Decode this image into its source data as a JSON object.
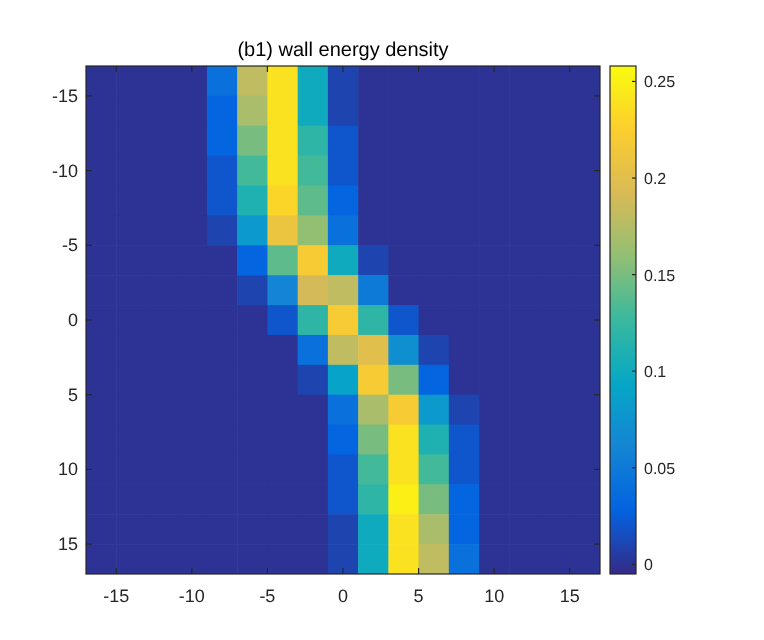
{
  "chart_data": {
    "type": "heatmap",
    "title": "(b1) wall energy density",
    "x": [
      -16,
      -14,
      -12,
      -10,
      -8,
      -6,
      -4,
      -2,
      0,
      2,
      4,
      6,
      8,
      10,
      12,
      14,
      16
    ],
    "y": [
      -16,
      -14,
      -12,
      -10,
      -8,
      -6,
      -4,
      -2,
      0,
      2,
      4,
      6,
      8,
      10,
      12,
      14,
      16
    ],
    "xlim": [
      -17,
      17
    ],
    "ylim": [
      17,
      -17
    ],
    "xticks": [
      -15,
      -10,
      -5,
      0,
      5,
      10,
      15
    ],
    "yticks": [
      -15,
      -10,
      -5,
      0,
      5,
      10,
      15
    ],
    "clim": [
      -0.005,
      0.258
    ],
    "cticks": [
      0,
      0.05,
      0.1,
      0.15,
      0.2,
      0.25
    ],
    "cells": [
      [
        0,
        0,
        0,
        0,
        0.04,
        0.18,
        0.24,
        0.1,
        0.01,
        0,
        0,
        0,
        0,
        0,
        0,
        0,
        0
      ],
      [
        0,
        0,
        0,
        0,
        0.03,
        0.17,
        0.24,
        0.1,
        0.01,
        0,
        0,
        0,
        0,
        0,
        0,
        0,
        0
      ],
      [
        0,
        0,
        0,
        0,
        0.03,
        0.15,
        0.24,
        0.12,
        0.02,
        0,
        0,
        0,
        0,
        0,
        0,
        0,
        0
      ],
      [
        0,
        0,
        0,
        0,
        0.02,
        0.13,
        0.24,
        0.13,
        0.02,
        0,
        0,
        0,
        0,
        0,
        0,
        0,
        0
      ],
      [
        0,
        0,
        0,
        0,
        0.02,
        0.11,
        0.23,
        0.14,
        0.03,
        0,
        0,
        0,
        0,
        0,
        0,
        0,
        0
      ],
      [
        0,
        0,
        0,
        0,
        0.01,
        0.08,
        0.21,
        0.16,
        0.04,
        0,
        0,
        0,
        0,
        0,
        0,
        0,
        0
      ],
      [
        0,
        0,
        0,
        0,
        0,
        0.03,
        0.14,
        0.22,
        0.1,
        0.01,
        0,
        0,
        0,
        0,
        0,
        0,
        0
      ],
      [
        0,
        0,
        0,
        0,
        0,
        0.01,
        0.06,
        0.19,
        0.18,
        0.05,
        0,
        0,
        0,
        0,
        0,
        0,
        0
      ],
      [
        0,
        0,
        0,
        0,
        0,
        0,
        0.02,
        0.12,
        0.22,
        0.12,
        0.02,
        0,
        0,
        0,
        0,
        0,
        0
      ],
      [
        0,
        0,
        0,
        0,
        0,
        0,
        0,
        0.04,
        0.18,
        0.2,
        0.07,
        0.01,
        0,
        0,
        0,
        0,
        0
      ],
      [
        0,
        0,
        0,
        0,
        0,
        0,
        0,
        0.01,
        0.09,
        0.22,
        0.15,
        0.03,
        0,
        0,
        0,
        0,
        0
      ],
      [
        0,
        0,
        0,
        0,
        0,
        0,
        0,
        0,
        0.04,
        0.17,
        0.22,
        0.08,
        0.01,
        0,
        0,
        0,
        0
      ],
      [
        0,
        0,
        0,
        0,
        0,
        0,
        0,
        0,
        0.03,
        0.15,
        0.24,
        0.11,
        0.02,
        0,
        0,
        0,
        0
      ],
      [
        0,
        0,
        0,
        0,
        0,
        0,
        0,
        0,
        0.02,
        0.13,
        0.24,
        0.13,
        0.02,
        0,
        0,
        0,
        0
      ],
      [
        0,
        0,
        0,
        0,
        0,
        0,
        0,
        0,
        0.02,
        0.12,
        0.25,
        0.15,
        0.03,
        0,
        0,
        0,
        0
      ],
      [
        0,
        0,
        0,
        0,
        0,
        0,
        0,
        0,
        0.01,
        0.1,
        0.24,
        0.17,
        0.03,
        0,
        0,
        0,
        0
      ],
      [
        0,
        0,
        0,
        0,
        0,
        0,
        0,
        0,
        0.01,
        0.1,
        0.24,
        0.18,
        0.04,
        0,
        0,
        0,
        0
      ]
    ]
  }
}
